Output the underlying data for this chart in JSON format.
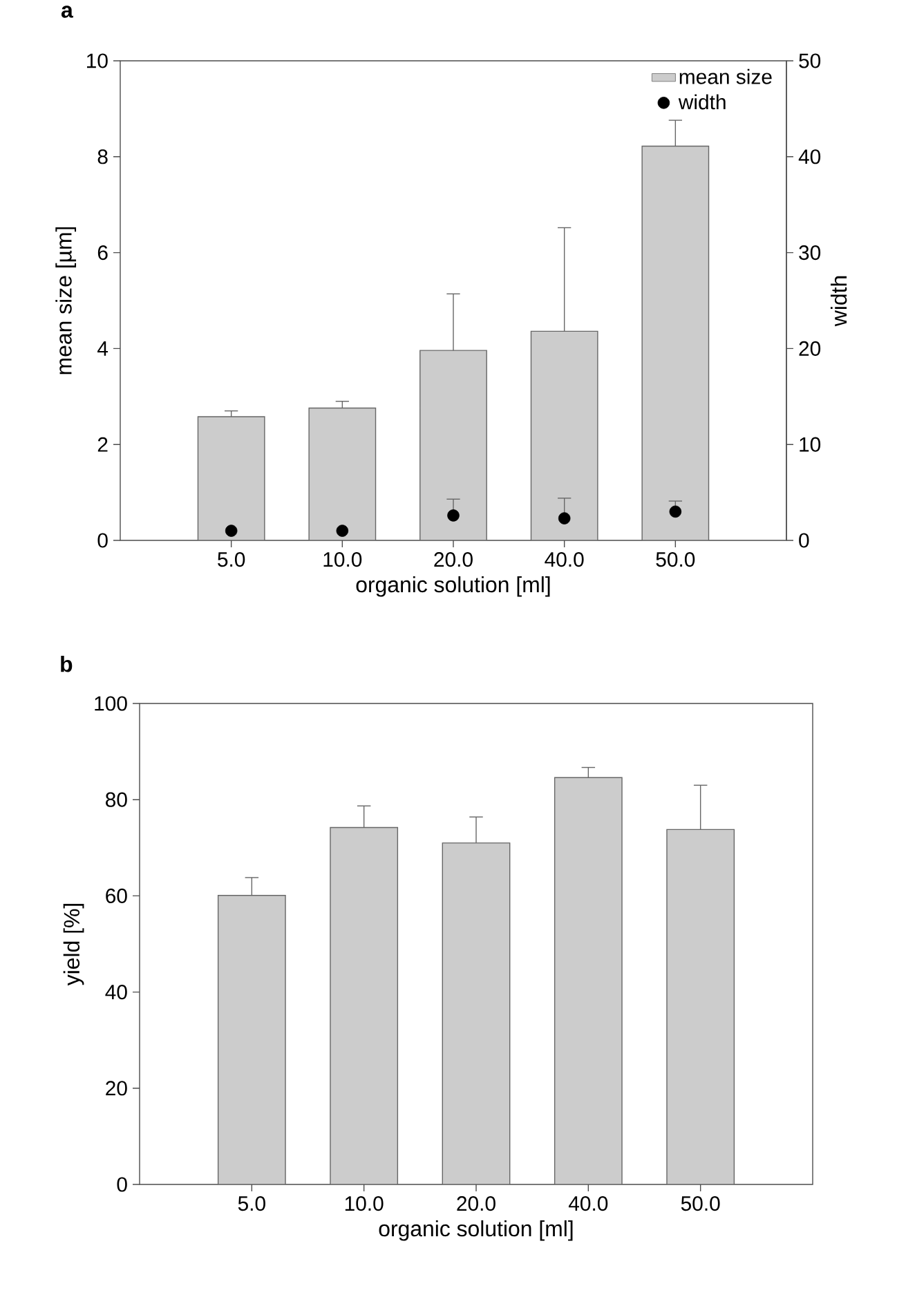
{
  "chart_data": [
    {
      "type": "bar",
      "title": "a",
      "xlabel": "organic solution [ml]",
      "ylabel": "mean size [µm]",
      "y2label": "width",
      "categories": [
        "5.0",
        "10.0",
        "20.0",
        "40.0",
        "50.0"
      ],
      "series": [
        {
          "name": "mean size",
          "type": "bar",
          "color": "#cccccc",
          "values": [
            2.58,
            2.76,
            3.96,
            4.36,
            8.22
          ],
          "errors": [
            [
              2.58,
              2.7
            ],
            [
              2.76,
              2.9
            ],
            [
              3.96,
              5.14
            ],
            [
              4.36,
              6.52
            ],
            [
              8.22,
              8.76
            ]
          ]
        },
        {
          "name": "width",
          "type": "scatter",
          "axis": "y2",
          "marker": "circle",
          "color": "#000000",
          "x": [
            "5.0",
            "10.0",
            "20.0",
            "40.0",
            "50.0"
          ],
          "values": [
            1.0,
            1.0,
            2.6,
            2.3,
            3.0
          ],
          "errors": [
            null,
            null,
            [
              2.6,
              4.3
            ],
            [
              2.3,
              4.4
            ],
            [
              3.0,
              4.1
            ]
          ]
        }
      ],
      "ylim": [
        0,
        10
      ],
      "yticks": [
        0,
        2,
        4,
        6,
        8,
        10
      ],
      "y2lim": [
        0,
        50
      ],
      "y2ticks": [
        0,
        10,
        20,
        30,
        40,
        50
      ],
      "legend": "top right"
    },
    {
      "type": "bar",
      "title": "b",
      "xlabel": "organic solution [ml]",
      "ylabel": "yield [%]",
      "categories": [
        "5.0",
        "10.0",
        "20.0",
        "40.0",
        "50.0"
      ],
      "values": [
        60.1,
        74.2,
        71.0,
        84.6,
        73.8
      ],
      "color": "#cccccc",
      "errors": [
        [
          60.1,
          63.8
        ],
        [
          74.2,
          78.7
        ],
        [
          71.0,
          76.4
        ],
        [
          84.6,
          86.7
        ],
        [
          73.8,
          83.0
        ]
      ],
      "ylim": [
        0,
        100
      ],
      "yticks": [
        0,
        20,
        40,
        60,
        80,
        100
      ]
    }
  ]
}
